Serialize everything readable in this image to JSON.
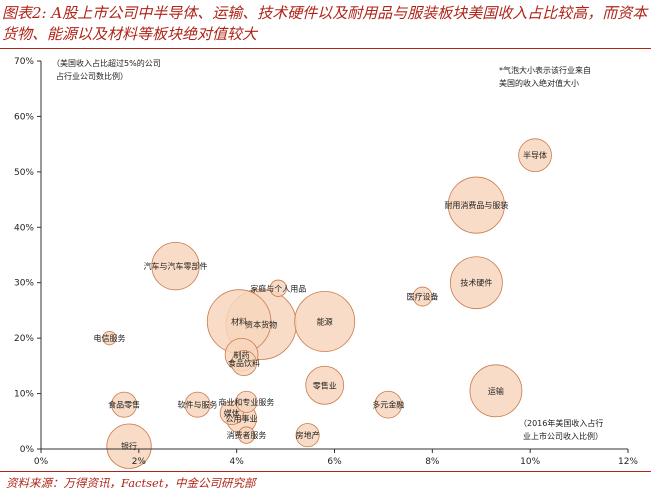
{
  "title": "图表2: A股上市公司中半导体、运输、技术硬件以及耐用品与服装板块美国收入占比较高，而资本货物、能源以及材料等板块绝对值较大",
  "source": "资料来源：万得资讯，Factset，中金公司研究部",
  "annotations": {
    "top_left": [
      "（美国收入占比超过5%的公司",
      "占行业公司数比例）"
    ],
    "top_right": [
      "*气泡大小表示该行业来自",
      "美国的收入绝对值大小"
    ],
    "bottom_right": [
      "（2016年美国收入占行",
      "业上市公司收入比例）"
    ]
  },
  "colors": {
    "title": "#b02418",
    "bubble_fill": "#f8d6bd",
    "bubble_stroke": "#c97a4c"
  },
  "chart_data": {
    "type": "scatter",
    "title": "",
    "xlabel": "",
    "ylabel": "",
    "xlim": [
      0,
      12
    ],
    "ylim": [
      0,
      70
    ],
    "x_unit": "%",
    "y_unit": "%",
    "x_ticks": [
      "0%",
      "2%",
      "4%",
      "6%",
      "8%",
      "10%",
      "12%"
    ],
    "y_ticks": [
      "0%",
      "10%",
      "20%",
      "30%",
      "40%",
      "50%",
      "60%",
      "70%"
    ],
    "grid": false,
    "legend": "none",
    "points": [
      {
        "label": "半导体",
        "x": 10.1,
        "y": 53,
        "size": 1.2
      },
      {
        "label": "耐用消费品与服装",
        "x": 8.9,
        "y": 44,
        "size": 3.5
      },
      {
        "label": "技术硬件",
        "x": 8.9,
        "y": 30,
        "size": 3.0
      },
      {
        "label": "医疗设备",
        "x": 7.8,
        "y": 27.5,
        "size": 0.4
      },
      {
        "label": "运输",
        "x": 9.3,
        "y": 10.5,
        "size": 3.0
      },
      {
        "label": "多元金融",
        "x": 7.1,
        "y": 8,
        "size": 0.8
      },
      {
        "label": "汽车与汽车零部件",
        "x": 2.75,
        "y": 33,
        "size": 2.5
      },
      {
        "label": "家庭与个人用品",
        "x": 4.85,
        "y": 29,
        "size": 0.3
      },
      {
        "label": "材料",
        "x": 4.05,
        "y": 23,
        "size": 4.5
      },
      {
        "label": "资本货物",
        "x": 4.5,
        "y": 22.5,
        "size": 5.5
      },
      {
        "label": "能源",
        "x": 5.8,
        "y": 23,
        "size": 4.0
      },
      {
        "label": "电信服务",
        "x": 1.4,
        "y": 20,
        "size": 0.2
      },
      {
        "label": "制药",
        "x": 4.1,
        "y": 17,
        "size": 1.2
      },
      {
        "label": "食品饮料",
        "x": 4.15,
        "y": 15.5,
        "size": 0.7
      },
      {
        "label": "零售业",
        "x": 5.8,
        "y": 11.5,
        "size": 1.6
      },
      {
        "label": "食品零售",
        "x": 1.7,
        "y": 8,
        "size": 0.7
      },
      {
        "label": "软件与服务",
        "x": 3.2,
        "y": 8,
        "size": 0.7
      },
      {
        "label": "商业和专业服务",
        "x": 4.2,
        "y": 8.5,
        "size": 0.5
      },
      {
        "label": "媒体",
        "x": 3.9,
        "y": 6.5,
        "size": 0.6
      },
      {
        "label": "公用事业",
        "x": 4.1,
        "y": 5.5,
        "size": 1.0
      },
      {
        "label": "银行",
        "x": 1.8,
        "y": 0.5,
        "size": 2.2
      },
      {
        "label": "消费者服务",
        "x": 4.2,
        "y": 2.5,
        "size": 0.3
      },
      {
        "label": "房地产",
        "x": 5.45,
        "y": 2.5,
        "size": 0.6
      }
    ]
  }
}
